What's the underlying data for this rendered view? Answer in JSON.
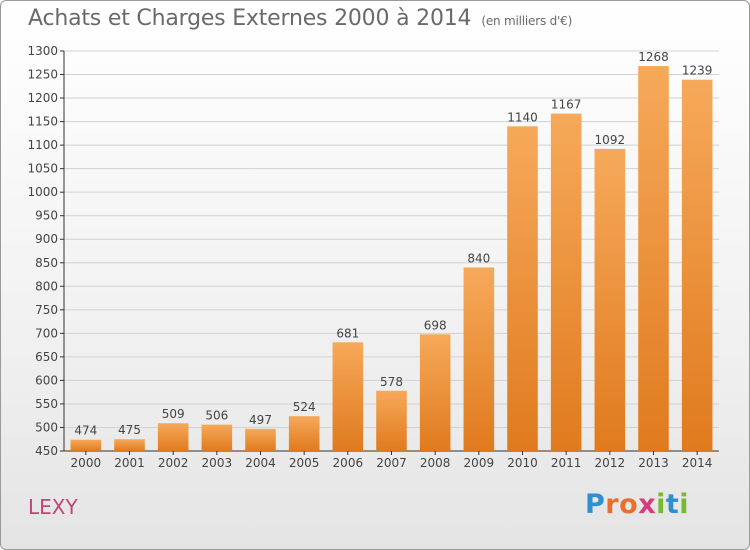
{
  "title": "Achats et Charges Externes 2000 à 2014",
  "subtitle": "(en milliers d'€)",
  "commune": "LEXY",
  "logo": {
    "letters": [
      {
        "ch": "P",
        "color": "#2f8fd0"
      },
      {
        "ch": "r",
        "color": "#e8702a"
      },
      {
        "ch": "o",
        "color": "#e8702a"
      },
      {
        "ch": "x",
        "color": "#d83a7e"
      },
      {
        "ch": "i",
        "color": "#79b92e"
      },
      {
        "ch": "t",
        "color": "#2f8fd0"
      },
      {
        "ch": "i",
        "color": "#79b92e"
      }
    ]
  },
  "colors": {
    "bar_light": "#f6a95a",
    "bar_dark": "#e07a1e",
    "grid": "#d2d2d2",
    "axis": "#333333",
    "text": "#444444"
  },
  "chart_data": {
    "type": "bar",
    "categories": [
      "2000",
      "2001",
      "2002",
      "2003",
      "2004",
      "2005",
      "2006",
      "2007",
      "2008",
      "2009",
      "2010",
      "2011",
      "2012",
      "2013",
      "2014"
    ],
    "values": [
      474,
      475,
      509,
      506,
      497,
      524,
      681,
      578,
      698,
      840,
      1140,
      1167,
      1092,
      1268,
      1239
    ],
    "data_labels": [
      "474",
      "475",
      "509",
      "506",
      "497",
      "524",
      "681",
      "578",
      "698",
      "840",
      "1140",
      "1167",
      "1092",
      "1268",
      "1239"
    ],
    "ylim": [
      450,
      1300
    ],
    "yticks": [
      "450",
      "500",
      "550",
      "600",
      "650",
      "700",
      "750",
      "800",
      "850",
      "900",
      "950",
      "1000",
      "1050",
      "1100",
      "1150",
      "1200",
      "1250",
      "1300"
    ],
    "grid": true
  }
}
